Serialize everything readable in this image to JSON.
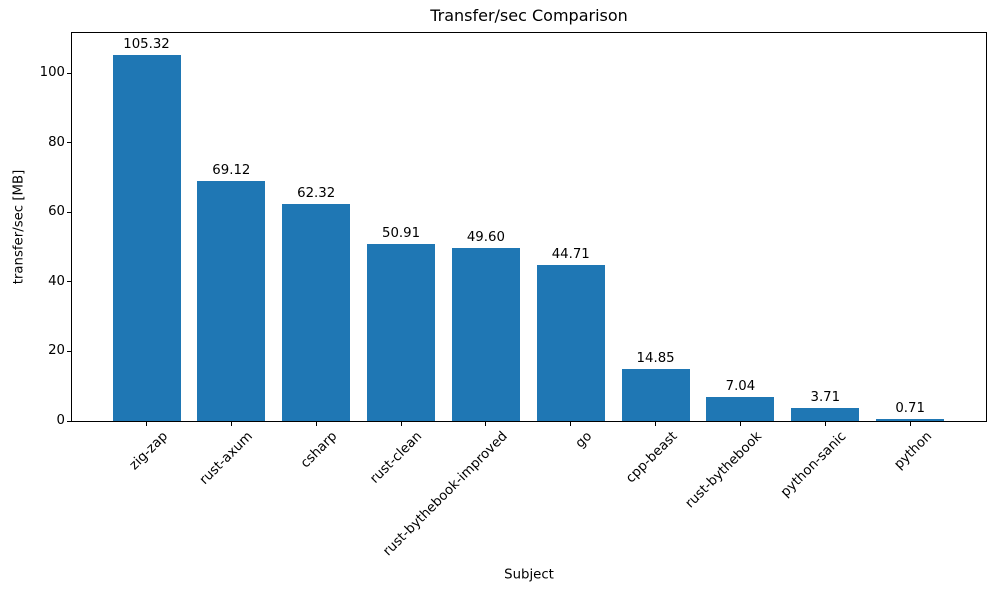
{
  "chart_data": {
    "type": "bar",
    "title": "Transfer/sec Comparison",
    "xlabel": "Subject",
    "ylabel": "transfer/sec [MB]",
    "categories": [
      "zig-zap",
      "rust-axum",
      "csharp",
      "rust-clean",
      "rust-bythebook-improved",
      "go",
      "cpp-beast",
      "rust-bythebook",
      "python-sanic",
      "python"
    ],
    "values": [
      105.32,
      69.12,
      62.32,
      50.91,
      49.6,
      44.71,
      14.85,
      7.04,
      3.71,
      0.71
    ],
    "value_labels": [
      "105.32",
      "69.12",
      "62.32",
      "50.91",
      "49.60",
      "44.71",
      "14.85",
      "7.04",
      "3.71",
      "0.71"
    ],
    "yticks": [
      0,
      20,
      40,
      60,
      80,
      100
    ],
    "ylim": [
      0,
      111.5
    ],
    "xtick_rotation": 45,
    "grid": false,
    "legend": null,
    "bar_color": "#1f77b4",
    "text_color": "#000000"
  }
}
